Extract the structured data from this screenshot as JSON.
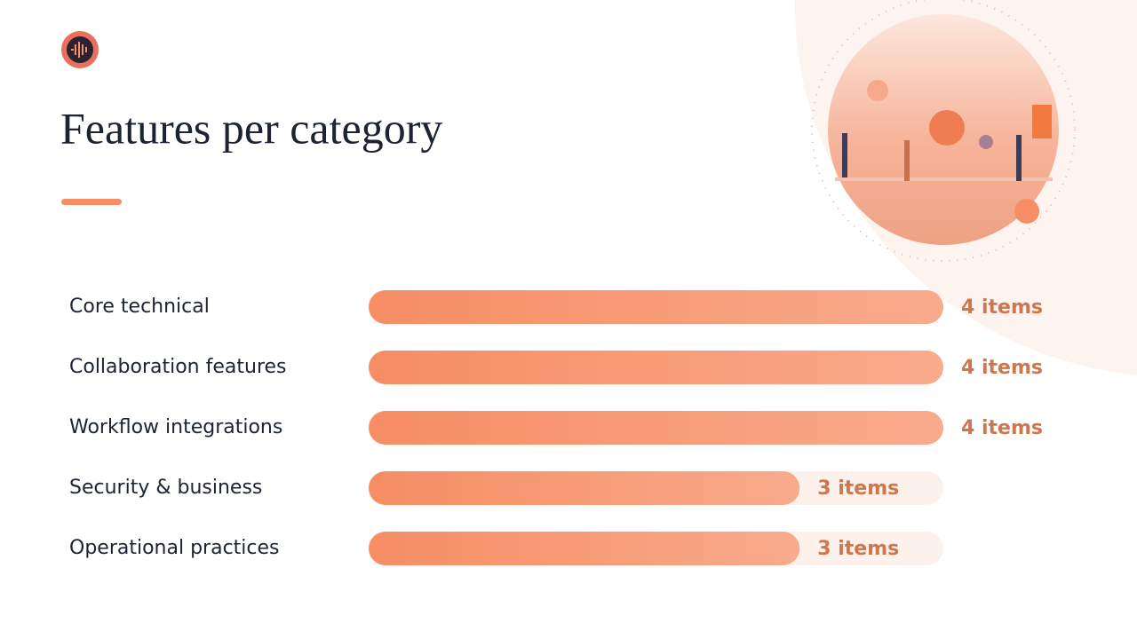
{
  "chart_data": {
    "type": "bar",
    "orientation": "horizontal",
    "title": "Features per category",
    "categories": [
      "Core technical",
      "Collaboration features",
      "Workflow integrations",
      "Security & business",
      "Operational practices"
    ],
    "values": [
      4,
      4,
      4,
      3,
      3
    ],
    "value_labels": [
      "4 items",
      "4 items",
      "4 items",
      "3 items",
      "3 items"
    ],
    "xlim": [
      0,
      4
    ],
    "color": "#f68d64"
  }
}
